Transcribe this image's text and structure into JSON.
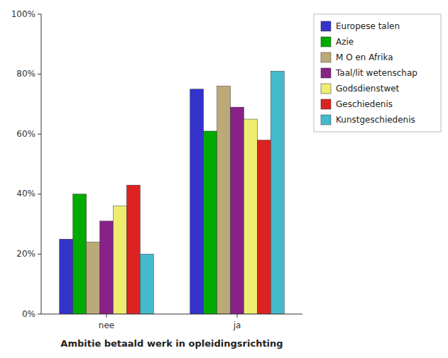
{
  "chart_data": {
    "type": "bar",
    "xlabel": "Ambitie betaald werk in opleidingsrichting",
    "categories": [
      "nee",
      "ja"
    ],
    "series": [
      {
        "name": "Europese talen",
        "color": "#3333CC",
        "values": [
          25.0,
          75.0
        ]
      },
      {
        "name": "Azie",
        "color": "#00AA00",
        "values": [
          40.0,
          61.0
        ]
      },
      {
        "name": "M O en Afrika",
        "color": "#BBAA77",
        "values": [
          24.0,
          76.0
        ]
      },
      {
        "name": "Taal/lit wetenschap",
        "color": "#882288",
        "values": [
          31.0,
          69.0
        ]
      },
      {
        "name": "Godsdienstwet",
        "color": "#EEED70",
        "values": [
          36.0,
          65.0
        ]
      },
      {
        "name": "Geschiedenis",
        "color": "#DD2222",
        "values": [
          43.0,
          58.0
        ]
      },
      {
        "name": "Kunstgeschiedenis",
        "color": "#44BBCC",
        "values": [
          20.0,
          81.0
        ]
      }
    ],
    "ylim": [
      0,
      100
    ],
    "yticks": [
      {
        "value": 0,
        "label": "0%"
      },
      {
        "value": 20,
        "label": "20%"
      },
      {
        "value": 40,
        "label": "40%"
      },
      {
        "value": 60,
        "label": "60%"
      },
      {
        "value": 80,
        "label": "80%"
      },
      {
        "value": 100,
        "label": "100%"
      }
    ],
    "grid": false,
    "legend": "right"
  }
}
